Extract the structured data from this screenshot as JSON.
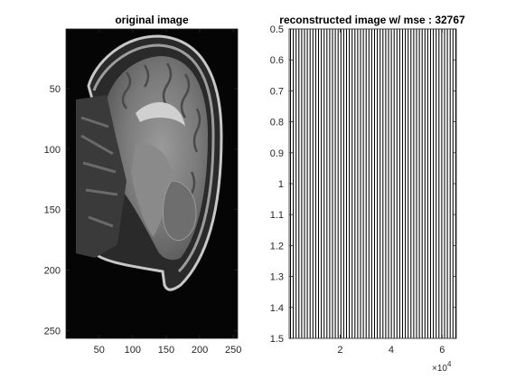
{
  "figure": {
    "background": "#ffffff"
  },
  "chart_data": [
    {
      "type": "heatmap",
      "title": "original image",
      "colormap": "gray",
      "content": "sagittal MRI brain slice",
      "xlim": [
        0.5,
        256.5
      ],
      "ylim": [
        0.5,
        256.5
      ],
      "y_reversed": true,
      "x_ticks": [
        "50",
        "100",
        "150",
        "200",
        "250"
      ],
      "x_tick_values": [
        50,
        100,
        150,
        200,
        250
      ],
      "y_ticks": [
        "50",
        "100",
        "150",
        "200",
        "250"
      ],
      "y_tick_values": [
        50,
        100,
        150,
        200,
        250
      ]
    },
    {
      "type": "heatmap",
      "title": "reconstructed image w/ mse  : 32767",
      "colormap": "gray",
      "content": "dense vertical stripe pattern",
      "xlim": [
        0.5,
        65536.5
      ],
      "ylim": [
        0.5,
        1.5
      ],
      "y_reversed": true,
      "x_ticks": [
        "2",
        "4",
        "6"
      ],
      "x_tick_values": [
        20000,
        40000,
        60000
      ],
      "x_exponent_base": "×10",
      "x_exponent": "4",
      "y_ticks": [
        "0.5",
        "0.6",
        "0.7",
        "0.8",
        "0.9",
        "1",
        "1.1",
        "1.2",
        "1.3",
        "1.4",
        "1.5"
      ],
      "y_tick_values": [
        0.5,
        0.6,
        0.7,
        0.8,
        0.9,
        1.0,
        1.1,
        1.2,
        1.3,
        1.4,
        1.5
      ]
    }
  ]
}
